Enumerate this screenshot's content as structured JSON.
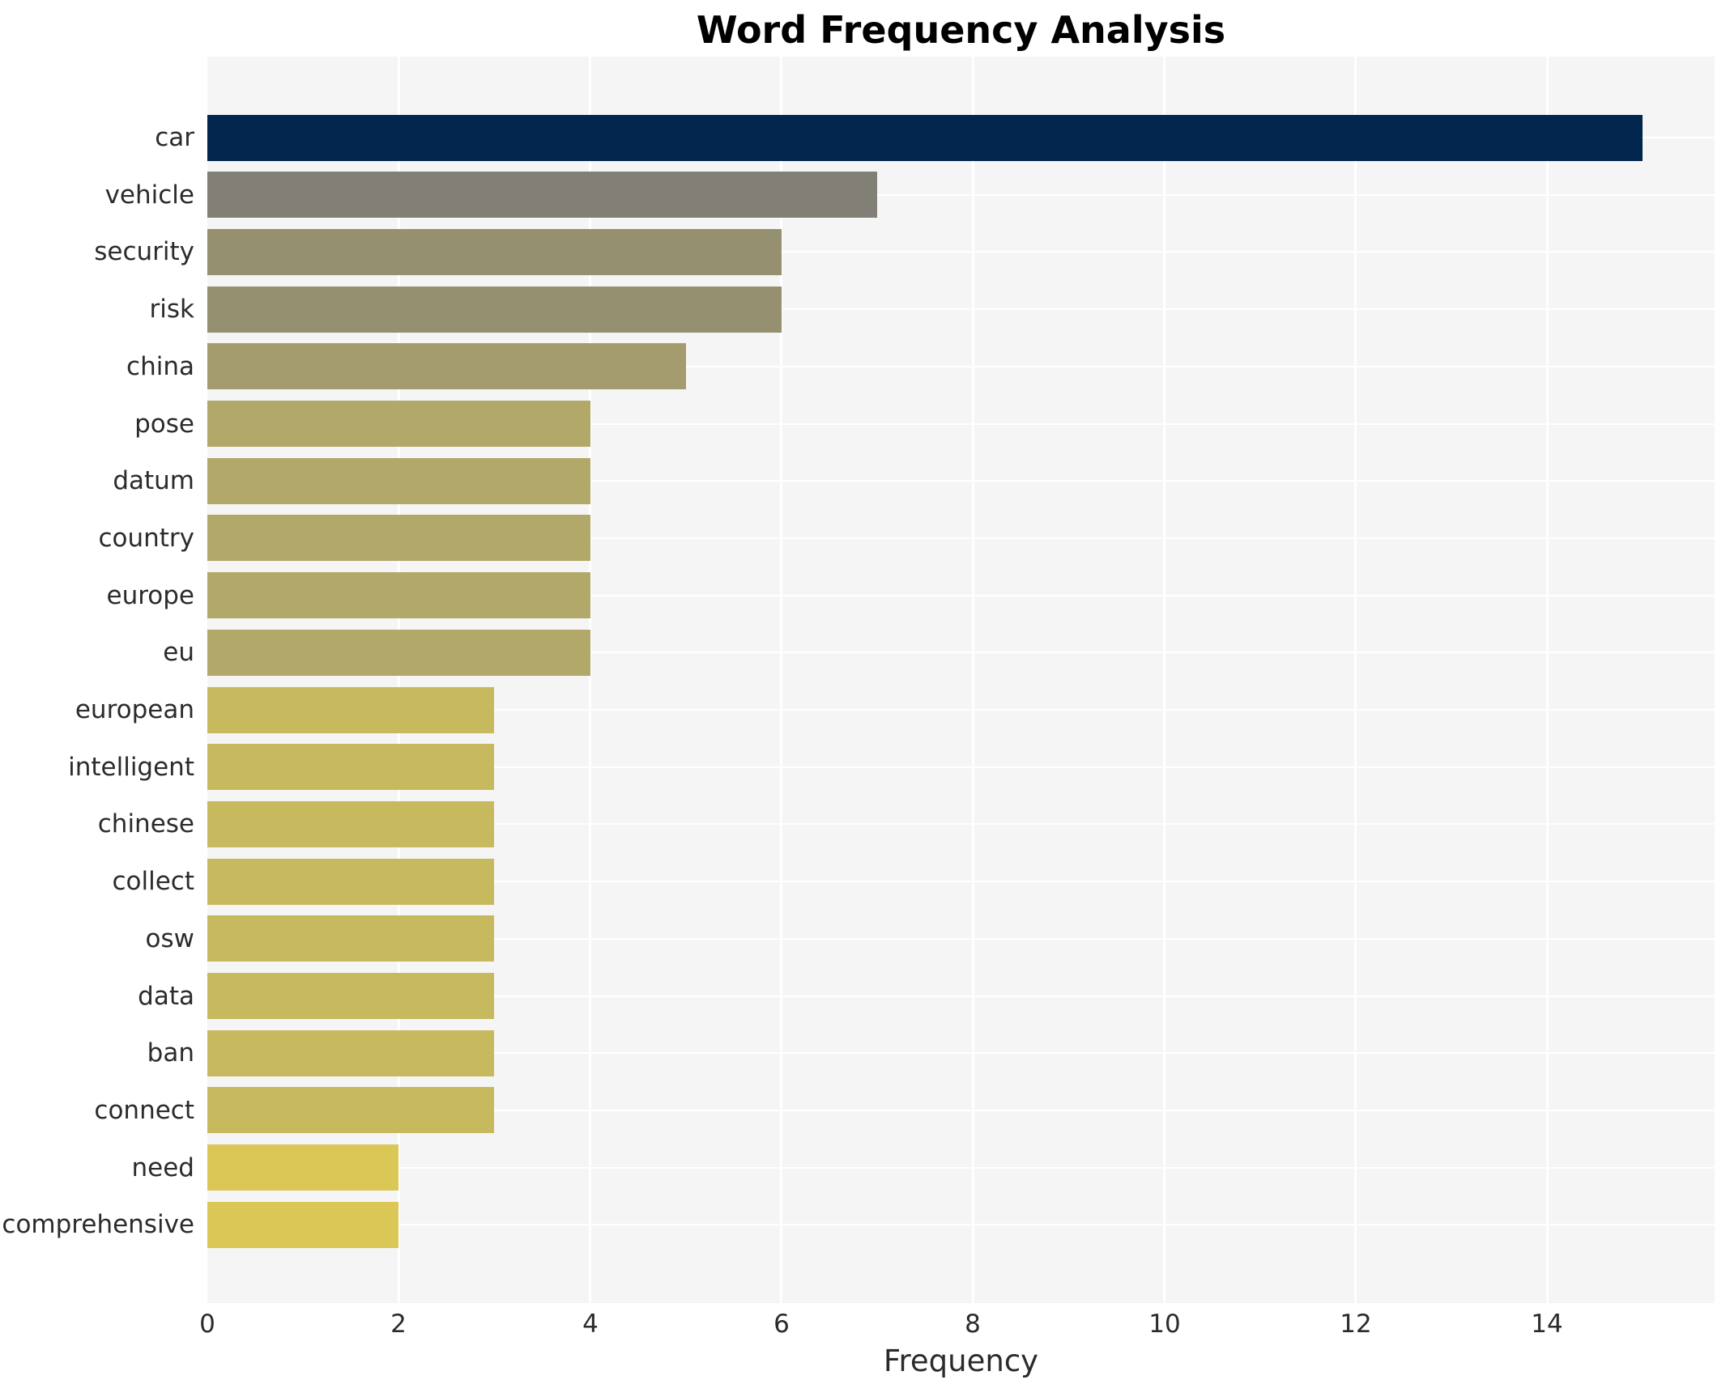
{
  "title": "Word Frequency Analysis",
  "axis": {
    "xlabel": "Frequency"
  },
  "chart_data": {
    "type": "bar",
    "orientation": "horizontal",
    "title": "Word Frequency Analysis",
    "xlabel": "Frequency",
    "ylabel": "",
    "categories": [
      "car",
      "vehicle",
      "security",
      "risk",
      "china",
      "pose",
      "datum",
      "country",
      "europe",
      "eu",
      "european",
      "intelligent",
      "chinese",
      "collect",
      "osw",
      "data",
      "ban",
      "connect",
      "need",
      "comprehensive"
    ],
    "values": [
      15,
      7,
      6,
      6,
      5,
      4,
      4,
      4,
      4,
      4,
      3,
      3,
      3,
      3,
      3,
      3,
      3,
      3,
      2,
      2
    ],
    "bar_colors": [
      "#03264e",
      "#827f76",
      "#949070",
      "#949070",
      "#a49c6e",
      "#b1a86a",
      "#b1a86a",
      "#b1a86a",
      "#b1a86a",
      "#b1a86a",
      "#c7b95e",
      "#c7b95e",
      "#c7b95e",
      "#c7b95e",
      "#c7b95e",
      "#c7b95e",
      "#c7b95e",
      "#c7b95e",
      "#dbc755",
      "#dbc755"
    ],
    "x_ticks": [
      0,
      2,
      4,
      6,
      8,
      10,
      12,
      14
    ],
    "xlim": [
      0,
      15.75
    ],
    "grid": "white vertical and horizontal gridlines on light gray panel",
    "legend_position": "none",
    "plot_background": "#f5f5f6",
    "grid_color": "#ffffff",
    "tick_label_color": "#2b2b2b",
    "title_color": "#000000"
  }
}
